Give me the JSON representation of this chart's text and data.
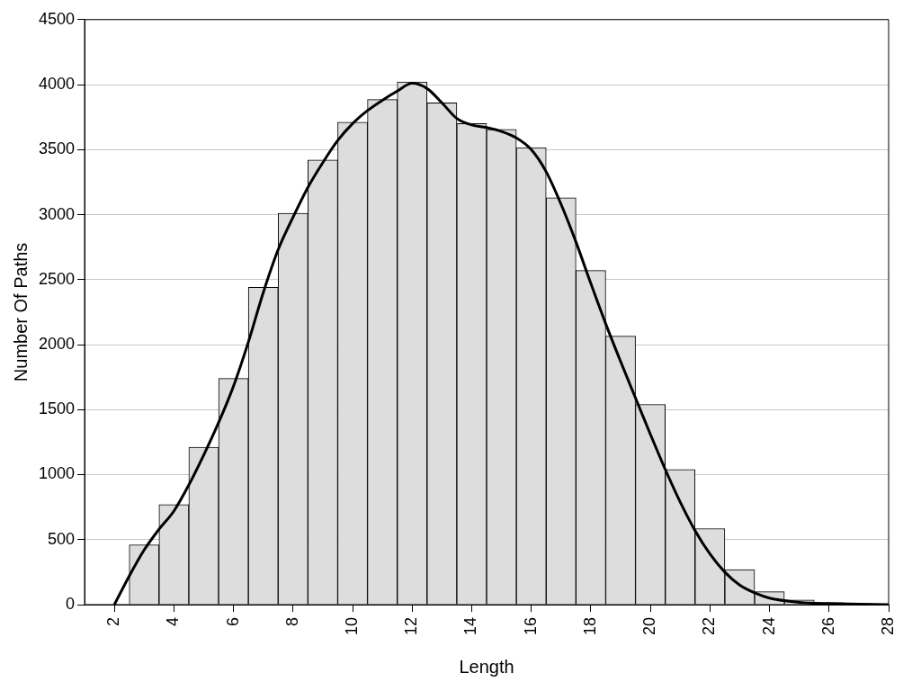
{
  "chart_data": {
    "type": "histogram",
    "xlabel": "Length",
    "ylabel": "Number Of Paths",
    "xlim": [
      1,
      28
    ],
    "xticks": [
      2,
      4,
      6,
      8,
      10,
      12,
      14,
      16,
      18,
      20,
      22,
      24,
      26,
      28
    ],
    "ylim": [
      0,
      4500
    ],
    "yticks": [
      0,
      500,
      1000,
      1500,
      2000,
      2500,
      3000,
      3500,
      4000,
      4500
    ],
    "grid": "y",
    "legend": false,
    "marker": "none",
    "series": [
      {
        "type": "histogram",
        "color": "#dddddd",
        "bins": [
          2.5,
          3.5,
          4.5,
          5.5,
          6.5,
          7.5,
          8.5,
          9.5,
          10.5,
          11.5,
          12.5,
          13.5,
          14.5,
          15.5,
          16.5,
          17.5,
          18.5,
          19.5,
          20.5,
          21.5,
          22.5,
          23.5,
          24.5,
          25.5,
          26.5,
          27.5
        ],
        "values": [
          460,
          770,
          1210,
          1740,
          2440,
          3010,
          3420,
          3710,
          3885,
          4020,
          3860,
          3700,
          3655,
          3515,
          3130,
          2570,
          2065,
          1540,
          1040,
          585,
          270,
          100,
          35,
          15,
          8
        ]
      },
      {
        "type": "line",
        "color": "#000000",
        "line_style": "solid",
        "x": [
          2,
          2.5,
          3,
          3.5,
          4,
          4.5,
          5,
          5.5,
          6,
          6.5,
          7,
          7.5,
          8,
          8.5,
          9,
          9.5,
          10,
          10.5,
          11,
          11.5,
          12,
          12.5,
          13,
          13.5,
          14,
          14.5,
          15,
          15.5,
          16,
          16.5,
          17,
          17.5,
          18,
          18.5,
          19,
          19.5,
          20,
          20.5,
          21,
          21.5,
          22,
          22.5,
          23,
          23.5,
          24,
          25,
          26,
          27,
          28
        ],
        "values": [
          0,
          220,
          420,
          580,
          720,
          920,
          1150,
          1400,
          1680,
          2020,
          2400,
          2730,
          2980,
          3210,
          3400,
          3570,
          3700,
          3800,
          3880,
          3950,
          4010,
          3970,
          3860,
          3740,
          3690,
          3670,
          3640,
          3590,
          3500,
          3330,
          3080,
          2790,
          2470,
          2160,
          1870,
          1590,
          1310,
          1040,
          790,
          570,
          390,
          250,
          150,
          90,
          50,
          18,
          8,
          4,
          0
        ]
      }
    ]
  }
}
